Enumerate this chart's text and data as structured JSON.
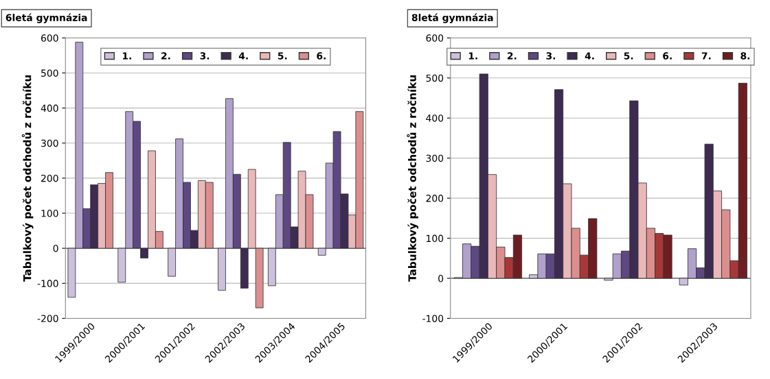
{
  "chart_data": [
    {
      "type": "bar",
      "title": "6letá gymnázia",
      "ylabel": "Tabulkový počet odchodů z ročníku",
      "categories": [
        "1999/2000",
        "2000/2001",
        "2001/2002",
        "2002/2003",
        "2003/2004",
        "2004/2005"
      ],
      "ylim": [
        -200,
        600
      ],
      "yticks": [
        -200,
        -100,
        0,
        100,
        200,
        300,
        400,
        500,
        600
      ],
      "grid": "y",
      "legend": "top",
      "series": [
        {
          "name": "1.",
          "color": "#ccc0dc",
          "values": [
            -140,
            -97,
            -80,
            -120,
            -107,
            -20
          ]
        },
        {
          "name": "2.",
          "color": "#b0a0cc",
          "values": [
            588,
            390,
            312,
            427,
            153,
            243
          ]
        },
        {
          "name": "3.",
          "color": "#5e4882",
          "values": [
            113,
            362,
            188,
            211,
            302,
            333
          ]
        },
        {
          "name": "4.",
          "color": "#3d2b52",
          "values": [
            181,
            -28,
            51,
            -114,
            61,
            155
          ]
        },
        {
          "name": "5.",
          "color": "#eab8b8",
          "values": [
            185,
            278,
            193,
            225,
            220,
            95
          ]
        },
        {
          "name": "6.",
          "color": "#dc8e8e",
          "values": [
            216,
            48,
            188,
            -170,
            153,
            390
          ]
        }
      ]
    },
    {
      "type": "bar",
      "title": "8letá gymnázia",
      "ylabel": "Tabulkový počet odchodů z ročníku",
      "categories": [
        "1999/2000",
        "2000/2001",
        "2001/2002",
        "2002/2003"
      ],
      "ylim": [
        -100,
        600
      ],
      "yticks": [
        -100,
        0,
        100,
        200,
        300,
        400,
        500,
        600
      ],
      "grid": "y",
      "legend": "top",
      "series": [
        {
          "name": "1.",
          "color": "#ccc0dc",
          "values": [
            2,
            9,
            -5,
            -17
          ]
        },
        {
          "name": "2.",
          "color": "#b0a0cc",
          "values": [
            86,
            61,
            61,
            74
          ]
        },
        {
          "name": "3.",
          "color": "#5e4882",
          "values": [
            80,
            61,
            68,
            26
          ]
        },
        {
          "name": "4.",
          "color": "#3d2b52",
          "values": [
            510,
            471,
            443,
            335
          ]
        },
        {
          "name": "5.",
          "color": "#eab8b8",
          "values": [
            259,
            236,
            238,
            218
          ]
        },
        {
          "name": "6.",
          "color": "#dc8e8e",
          "values": [
            78,
            125,
            125,
            171
          ]
        },
        {
          "name": "7.",
          "color": "#a83838",
          "values": [
            52,
            58,
            112,
            44
          ]
        },
        {
          "name": "8.",
          "color": "#6e1e22",
          "values": [
            108,
            149,
            108,
            487
          ]
        }
      ]
    }
  ]
}
